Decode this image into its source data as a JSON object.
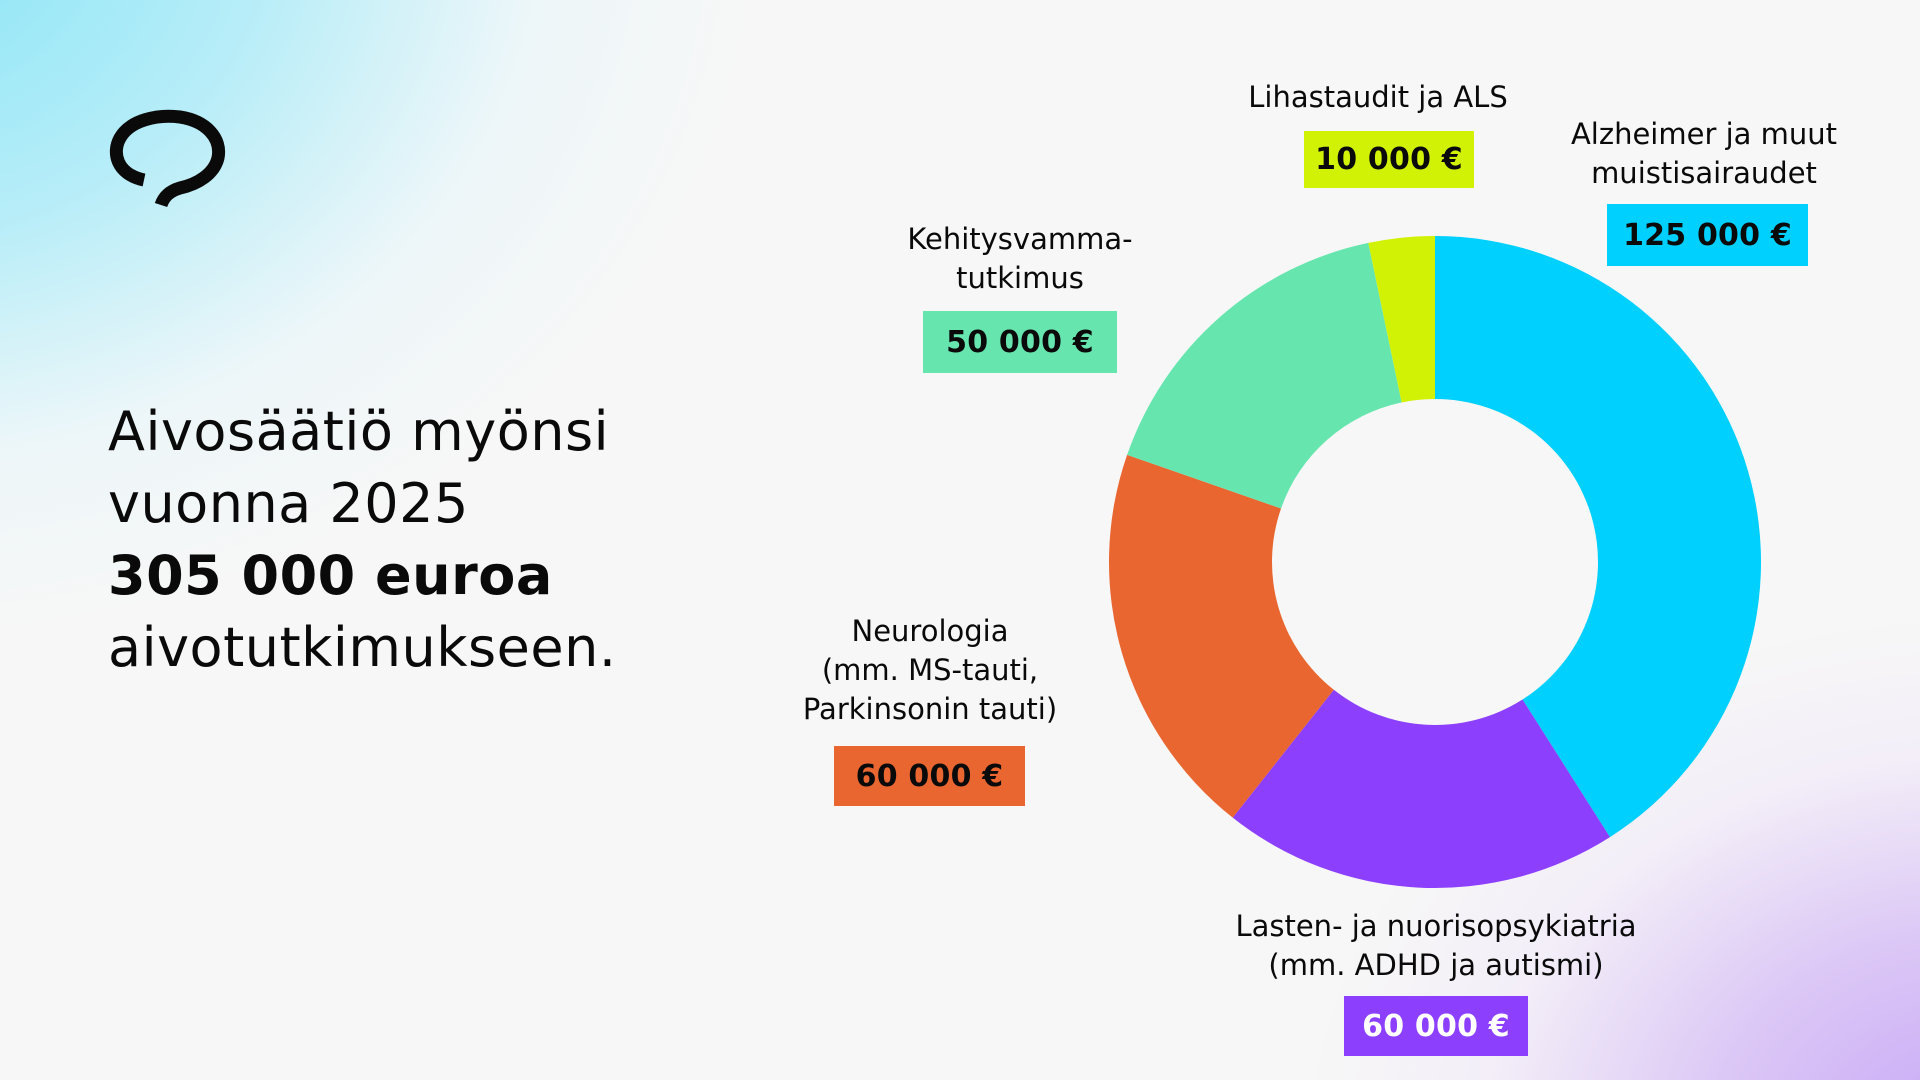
{
  "logo": {
    "icon": "aivosaatio-speech-loop-logo"
  },
  "headline": {
    "line1": "Aivosäätiö myönsi",
    "line2": "vuonna 2025",
    "line3": "305 000 euroa",
    "line4": "aivotutkimukseen."
  },
  "segments": [
    {
      "label_lines": [
        "Alzheimer ja muut",
        "muistisairaudet"
      ],
      "amount": "125 000 €",
      "value": 125000,
      "color": "#00d0fd",
      "text_color": "#0a0a0a"
    },
    {
      "label_lines": [
        "Lasten- ja nuorisopsykiatria",
        "(mm. ADHD ja autismi)"
      ],
      "amount": "60 000 €",
      "value": 60000,
      "color": "#8c3ffd",
      "text_color": "#ffffff"
    },
    {
      "label_lines": [
        "Neurologia",
        "(mm. MS-tauti,",
        "Parkinsonin tauti)"
      ],
      "amount": "60 000 €",
      "value": 60000,
      "color": "#e96630",
      "text_color": "#0a0a0a"
    },
    {
      "label_lines": [
        "Kehitysvamma-",
        "tutkimus"
      ],
      "amount": "50 000 €",
      "value": 50000,
      "color": "#66e6ae",
      "text_color": "#0a0a0a"
    },
    {
      "label_lines": [
        "Lihastaudit ja ALS"
      ],
      "amount": "10 000 €",
      "value": 10000,
      "color": "#d2f205",
      "text_color": "#0a0a0a"
    }
  ],
  "chart_data": {
    "type": "pie",
    "subtype": "donut",
    "title": "Aivosäätiö myönsi vuonna 2025 305 000 euroa aivotutkimukseen.",
    "categories": [
      "Alzheimer ja muut muistisairaudet",
      "Lasten- ja nuorisopsykiatria (mm. ADHD ja autismi)",
      "Neurologia (mm. MS-tauti, Parkinsonin tauti)",
      "Kehitysvammatutkimus",
      "Lihastaudit ja ALS"
    ],
    "values": [
      125000,
      60000,
      60000,
      50000,
      10000
    ],
    "value_labels": [
      "125 000 €",
      "60 000 €",
      "60 000 €",
      "50 000 €",
      "10 000 €"
    ],
    "colors": [
      "#00d0fd",
      "#8c3ffd",
      "#e96630",
      "#66e6ae",
      "#d2f205"
    ],
    "total": 305000,
    "unit": "€",
    "start_angle": "12 o'clock, clockwise",
    "legend": "none (direct labels)"
  }
}
